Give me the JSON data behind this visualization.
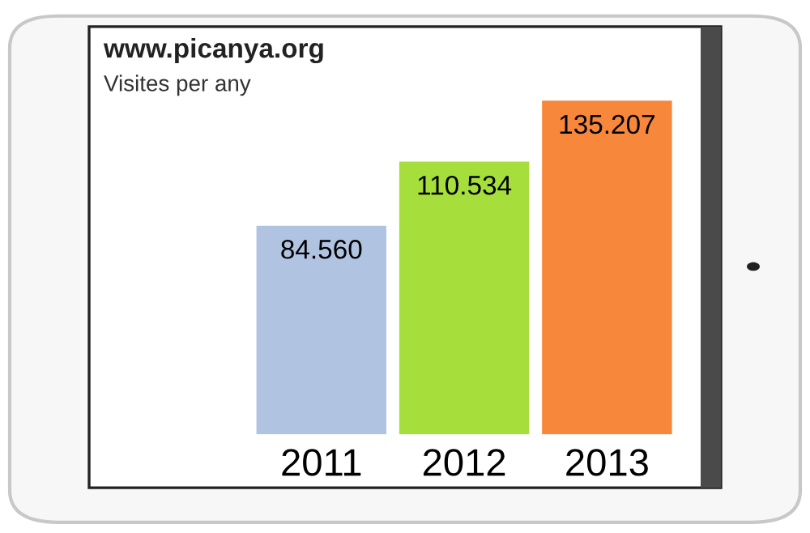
{
  "chart_data": {
    "type": "bar",
    "title": "www.picanya.org",
    "subtitle": "Visites per any",
    "categories": [
      "2011",
      "2012",
      "2013"
    ],
    "values": [
      84560,
      110534,
      135207
    ],
    "colors": [
      "#b0c4e2",
      "#a6df3c",
      "#f7873a"
    ],
    "value_labels": [
      "84.560",
      "110.534",
      "135.207"
    ],
    "grid": false,
    "legend": false
  }
}
